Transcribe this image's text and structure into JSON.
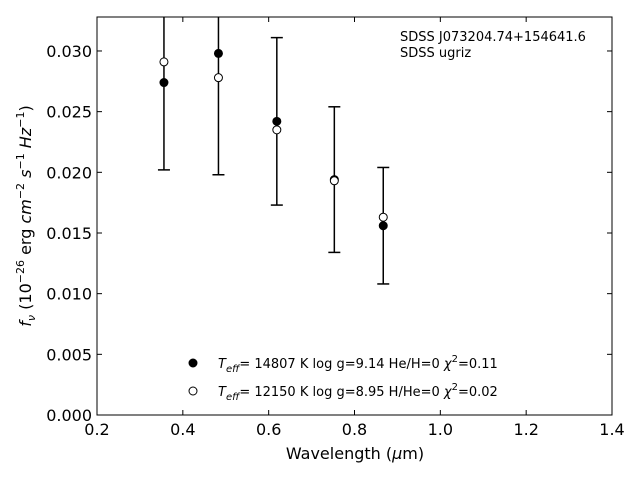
{
  "chart_data": {
    "type": "scatter",
    "title": "",
    "xlabel": "Wavelength (μm)",
    "ylabel": "fν (10⁻²⁶ erg cm⁻² s⁻¹ Hz⁻¹)",
    "xlim": [
      0.2,
      1.4
    ],
    "ylim": [
      0.0,
      0.0328
    ],
    "xticks": [
      "0.2",
      "0.4",
      "0.6",
      "0.8",
      "1.0",
      "1.2",
      "1.4"
    ],
    "yticks": [
      "0.000",
      "0.005",
      "0.010",
      "0.015",
      "0.020",
      "0.025",
      "0.030"
    ],
    "grid": false,
    "legend_position": "bottom-center",
    "annotation": [
      "SDSS J073204.74+154641.6",
      "SDSS ugriz"
    ],
    "observed": {
      "x": [
        0.356,
        0.483,
        0.619,
        0.753,
        0.867
      ],
      "y": [
        0.0274,
        0.0298,
        0.0242,
        0.0194,
        0.0156
      ],
      "yerr": [
        0.0072,
        0.01,
        0.0069,
        0.006,
        0.0048
      ]
    },
    "series": [
      {
        "name": "Teff= 14807 K  log g=9.14  He/H=0  χ²=0.11",
        "marker": "filled",
        "x": [
          0.356,
          0.483,
          0.619,
          0.753,
          0.867
        ],
        "y": [
          0.0274,
          0.0298,
          0.0242,
          0.0194,
          0.0156
        ]
      },
      {
        "name": "Teff= 12150 K  log g=8.95  H/He=0  χ²=0.02",
        "marker": "open",
        "x": [
          0.356,
          0.483,
          0.619,
          0.753,
          0.867
        ],
        "y": [
          0.0291,
          0.0278,
          0.0235,
          0.0193,
          0.0163
        ]
      }
    ],
    "legend": [
      {
        "teff": "14807",
        "logg": "9.14",
        "comp": "He/H=0",
        "chi2": "0.11",
        "marker": "filled"
      },
      {
        "teff": "12150",
        "logg": "8.95",
        "comp": "H/He=0",
        "chi2": "0.02",
        "marker": "open"
      }
    ]
  }
}
